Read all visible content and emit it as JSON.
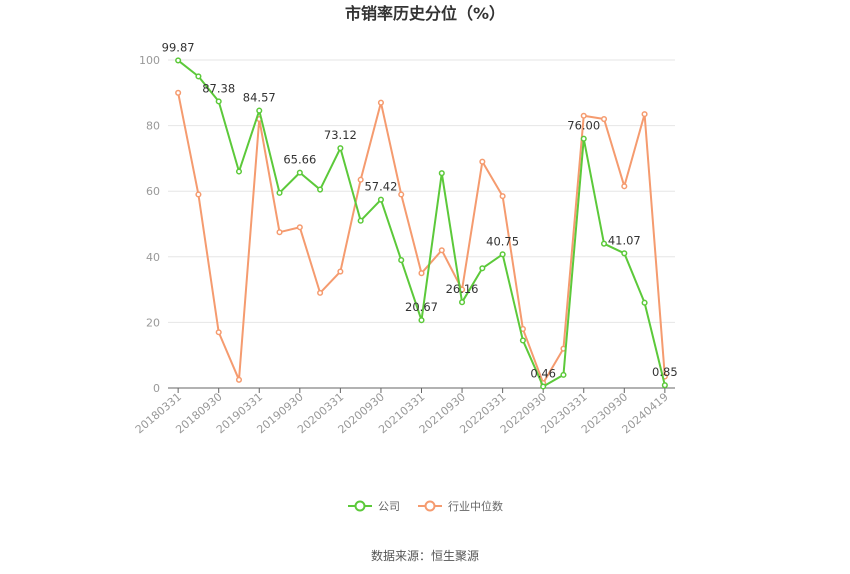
{
  "chart_data": {
    "type": "line",
    "title": "市销率历史分位（%）",
    "ylim": [
      0,
      100
    ],
    "y_ticks": [
      0,
      20,
      40,
      60,
      80,
      100
    ],
    "grid": "horizontal",
    "legend_position": "bottom",
    "x": [
      "20180331",
      "20180630",
      "20180930",
      "20181231",
      "20190331",
      "20190630",
      "20190930",
      "20191231",
      "20200331",
      "20200630",
      "20200930",
      "20201231",
      "20210331",
      "20210630",
      "20210930",
      "20211231",
      "20220331",
      "20220630",
      "20220930",
      "20221231",
      "20230331",
      "20230630",
      "20230930",
      "20231231",
      "20240419"
    ],
    "x_tick_labels": [
      "20180331",
      "20180930",
      "20190331",
      "20190930",
      "20200331",
      "20200930",
      "20210331",
      "20210930",
      "20220331",
      "20220930",
      "20230331",
      "20230930",
      "20240419"
    ],
    "series": [
      {
        "name": "公司",
        "color": "#5cc93a",
        "values": [
          99.87,
          95.0,
          87.38,
          66.0,
          84.57,
          59.5,
          65.66,
          60.5,
          73.12,
          51.0,
          57.42,
          39.0,
          20.67,
          65.5,
          26.16,
          36.5,
          40.75,
          14.5,
          0.46,
          4.0,
          76.0,
          44.0,
          41.07,
          26.0,
          0.85
        ],
        "labels": {
          "0": "99.87",
          "2": "87.38",
          "4": "84.57",
          "6": "65.66",
          "8": "73.12",
          "10": "57.42",
          "12": "20.67",
          "14": "26.16",
          "16": "40.75",
          "18": "0.46",
          "20": "76.00",
          "22": "41.07",
          "24": "0.85"
        }
      },
      {
        "name": "行业中位数",
        "color": "#f59b6f",
        "values": [
          90.0,
          59.0,
          17.0,
          2.5,
          82.0,
          47.5,
          49.0,
          29.0,
          35.5,
          63.5,
          87.0,
          59.0,
          35.0,
          42.0,
          30.0,
          69.0,
          58.5,
          18.0,
          1.5,
          12.0,
          83.0,
          82.0,
          61.5,
          83.5,
          3.5
        ]
      }
    ]
  },
  "source_text": "数据来源：恒生聚源"
}
